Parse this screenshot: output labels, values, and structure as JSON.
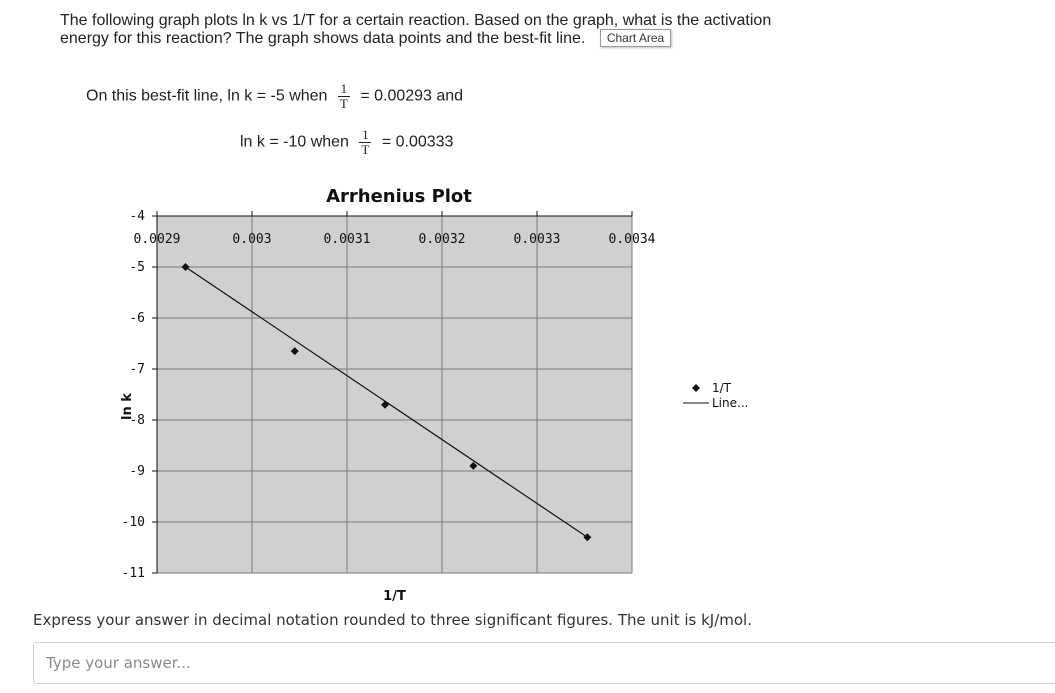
{
  "question": {
    "text": "The following graph plots ln k vs 1/T for a certain reaction.  Based on the graph, what is the activation energy for this reaction?    The graph shows data points and the best-fit line.",
    "tooltip": "Chart Area"
  },
  "info": {
    "line1_prefix": "On this best-fit line, ln k = -5 when",
    "line1_suffix": "= 0.00293 and",
    "line2_prefix": "ln k = -10 when",
    "line2_suffix": "= 0.00333",
    "frac_num": "1",
    "frac_den": "T"
  },
  "chart_data": {
    "type": "scatter",
    "title": "Arrhenius Plot",
    "xlabel": "1/T",
    "ylabel": "ln k",
    "xlim": [
      0.0029,
      0.0034
    ],
    "ylim": [
      -11,
      -4
    ],
    "x_ticks": [
      "0.0029",
      "0.003",
      "0.0031",
      "0.0032",
      "0.0033",
      "0.0034"
    ],
    "y_ticks": [
      "-4",
      "-5",
      "-6",
      "-7",
      "-8",
      "-9",
      "-10",
      "-11"
    ],
    "grid": true,
    "series": [
      {
        "name": "1/T",
        "points": [
          {
            "x": 0.00293,
            "y": -5.0
          },
          {
            "x": 0.003045,
            "y": -6.65
          },
          {
            "x": 0.00314,
            "y": -7.7
          },
          {
            "x": 0.003233,
            "y": -8.9
          },
          {
            "x": 0.003353,
            "y": -10.3
          }
        ]
      }
    ],
    "trendline": {
      "name": "Line...",
      "from": {
        "x": 0.00293,
        "y": -5.0
      },
      "to": {
        "x": 0.003353,
        "y": -10.3
      }
    },
    "legend": {
      "position": "right",
      "entries": [
        "1/T",
        "Line..."
      ]
    },
    "colors": {
      "plot_bg": "#d0d0d0",
      "grid": "#7a7a7a",
      "marker": "#111111"
    }
  },
  "prompt": {
    "instruction": "Express your answer in decimal notation rounded to three significant figures. The unit is kJ/mol.",
    "placeholder": "Type your answer..."
  }
}
